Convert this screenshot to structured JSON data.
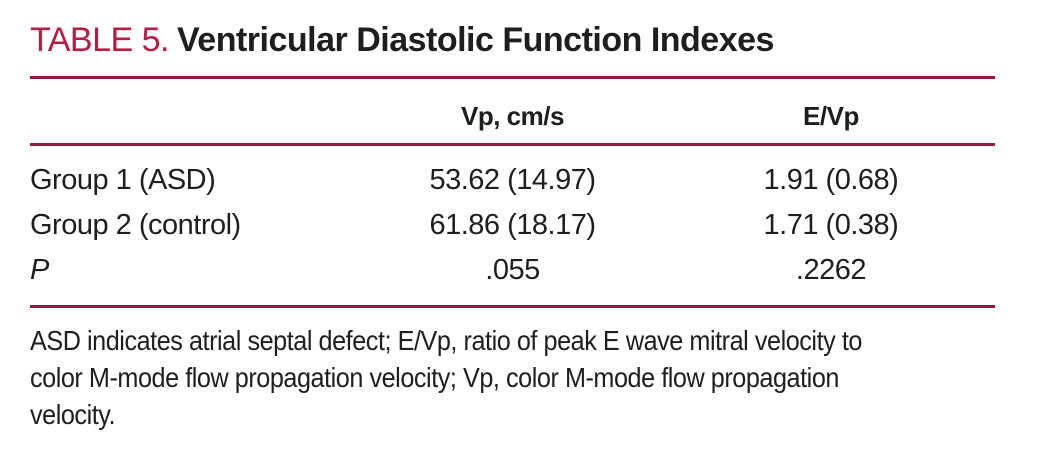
{
  "table": {
    "label": "TABLE 5.",
    "title": "Ventricular Diastolic Function Indexes",
    "columns": {
      "stub": "",
      "vp": "Vp, cm/s",
      "evp": "E/Vp"
    },
    "rows": [
      {
        "label": "Group 1 (ASD)",
        "vp": "53.62 (14.97)",
        "evp": "1.91 (0.68)"
      },
      {
        "label": "Group 2 (control)",
        "vp": "61.86 (18.17)",
        "evp": "1.71 (0.38)"
      },
      {
        "label": "P",
        "vp": ".055",
        "evp": ".2262"
      }
    ],
    "footnote_lines": [
      "ASD indicates atrial septal defect; E/Vp, ratio of peak E wave mitral velocity to",
      "color M-mode flow propagation velocity; Vp, color M-mode flow propagation",
      "velocity."
    ],
    "footnote_full": "ASD indicates atrial septal defect; E/Vp, ratio of peak E wave mitral velocity to color M-mode flow propagation velocity; Vp, color M-mode flow propagation velocity.",
    "colors": {
      "rule": "#8e1d40",
      "table_label_red": "#b41e45",
      "text": "#1e1e1e",
      "background": "#ffffff"
    }
  },
  "chart_data": {
    "type": "table",
    "title": "TABLE 5. Ventricular Diastolic Function Indexes",
    "columns": [
      "",
      "Vp, cm/s",
      "E/Vp"
    ],
    "rows": [
      [
        "Group 1 (ASD)",
        "53.62 (14.97)",
        "1.91 (0.68)"
      ],
      [
        "Group 2 (control)",
        "61.86 (18.17)",
        "1.71 (0.38)"
      ],
      [
        "P",
        ".055",
        ".2262"
      ]
    ],
    "footnote": "ASD indicates atrial septal defect; E/Vp, ratio of peak E wave mitral velocity to color M-mode flow propagation velocity; Vp, color M-mode flow propagation velocity."
  }
}
